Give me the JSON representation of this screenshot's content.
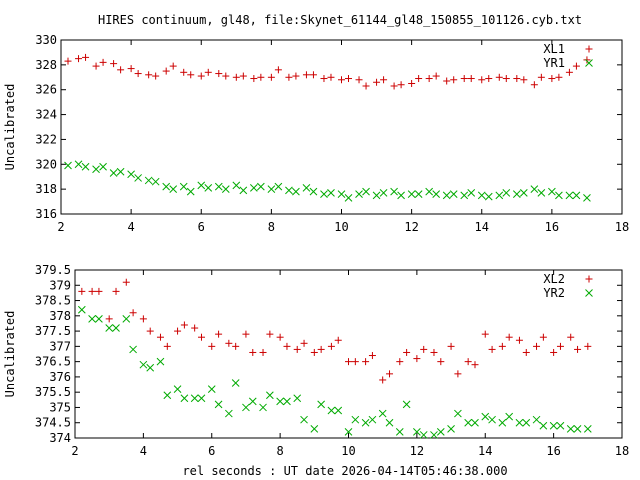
{
  "title": "HIRES continuum, gl48, file:Skynet_61144_gl48_150855_101126.cyb.txt",
  "xlabel": "rel seconds : UT date 2026-04-14T05:46:38.000",
  "colors": {
    "red": "#cc0000",
    "green": "#00aa00"
  },
  "chart_data": [
    {
      "type": "scatter",
      "ylabel": "Uncalibrated",
      "xlim": [
        2,
        18
      ],
      "ylim": [
        316,
        330
      ],
      "xticks": [
        "2",
        "4",
        "6",
        "8",
        "10",
        "12",
        "14",
        "16",
        "18"
      ],
      "yticks": [
        "316",
        "318",
        "320",
        "322",
        "324",
        "326",
        "328",
        "330"
      ],
      "legend_position": "top-right",
      "series": [
        {
          "name": "XL1",
          "marker": "plus",
          "color": "#cc0000",
          "x": [
            2.2,
            2.5,
            2.7,
            3.0,
            3.2,
            3.5,
            3.7,
            4.0,
            4.2,
            4.5,
            4.7,
            5.0,
            5.2,
            5.5,
            5.7,
            6.0,
            6.2,
            6.5,
            6.7,
            7.0,
            7.2,
            7.5,
            7.7,
            8.0,
            8.2,
            8.5,
            8.7,
            9.0,
            9.2,
            9.5,
            9.7,
            10.0,
            10.2,
            10.5,
            10.7,
            11.0,
            11.2,
            11.5,
            11.7,
            12.0,
            12.2,
            12.5,
            12.7,
            13.0,
            13.2,
            13.5,
            13.7,
            14.0,
            14.2,
            14.5,
            14.7,
            15.0,
            15.2,
            15.5,
            15.7,
            16.0,
            16.2,
            16.5,
            16.7,
            17.0
          ],
          "y": [
            328.3,
            328.5,
            328.6,
            327.9,
            328.2,
            328.1,
            327.6,
            327.7,
            327.3,
            327.2,
            327.1,
            327.5,
            327.9,
            327.4,
            327.2,
            327.1,
            327.4,
            327.3,
            327.1,
            327.0,
            327.1,
            326.9,
            327.0,
            327.0,
            327.6,
            327.0,
            327.1,
            327.2,
            327.2,
            326.9,
            327.0,
            326.8,
            326.9,
            326.8,
            326.3,
            326.6,
            326.8,
            326.3,
            326.4,
            326.5,
            326.9,
            326.9,
            327.1,
            326.7,
            326.8,
            326.9,
            326.9,
            326.8,
            326.9,
            327.0,
            326.9,
            326.9,
            326.8,
            326.4,
            327.0,
            326.9,
            327.0,
            327.4,
            327.9,
            328.4
          ]
        },
        {
          "name": "YR1",
          "marker": "cross",
          "color": "#00aa00",
          "x": [
            2.2,
            2.5,
            2.7,
            3.0,
            3.2,
            3.5,
            3.7,
            4.0,
            4.2,
            4.5,
            4.7,
            5.0,
            5.2,
            5.5,
            5.7,
            6.0,
            6.2,
            6.5,
            6.7,
            7.0,
            7.2,
            7.5,
            7.7,
            8.0,
            8.2,
            8.5,
            8.7,
            9.0,
            9.2,
            9.5,
            9.7,
            10.0,
            10.2,
            10.5,
            10.7,
            11.0,
            11.2,
            11.5,
            11.7,
            12.0,
            12.2,
            12.5,
            12.7,
            13.0,
            13.2,
            13.5,
            13.7,
            14.0,
            14.2,
            14.5,
            14.7,
            15.0,
            15.2,
            15.5,
            15.7,
            16.0,
            16.2,
            16.5,
            16.7,
            17.0
          ],
          "y": [
            319.9,
            320.0,
            319.8,
            319.6,
            319.8,
            319.3,
            319.4,
            319.2,
            318.9,
            318.7,
            318.6,
            318.2,
            318.0,
            318.2,
            317.8,
            318.3,
            318.1,
            318.2,
            318.0,
            318.3,
            317.9,
            318.1,
            318.2,
            318.0,
            318.2,
            317.9,
            317.8,
            318.1,
            317.8,
            317.6,
            317.7,
            317.6,
            317.3,
            317.6,
            317.8,
            317.5,
            317.7,
            317.8,
            317.5,
            317.6,
            317.6,
            317.8,
            317.6,
            317.5,
            317.6,
            317.5,
            317.7,
            317.5,
            317.4,
            317.5,
            317.7,
            317.6,
            317.7,
            318.0,
            317.7,
            317.8,
            317.5,
            317.5,
            317.5,
            317.3
          ]
        }
      ]
    },
    {
      "type": "scatter",
      "ylabel": "Uncalibrated",
      "xlim": [
        2,
        18
      ],
      "ylim": [
        374,
        379.5
      ],
      "xticks": [
        "2",
        "4",
        "6",
        "8",
        "10",
        "12",
        "14",
        "16",
        "18"
      ],
      "yticks": [
        "374",
        "374.5",
        "375",
        "375.5",
        "376",
        "376.5",
        "377",
        "377.5",
        "378",
        "378.5",
        "379",
        "379.5"
      ],
      "legend_position": "top-right",
      "series": [
        {
          "name": "XL2",
          "marker": "plus",
          "color": "#cc0000",
          "x": [
            2.2,
            2.5,
            2.7,
            3.0,
            3.2,
            3.5,
            3.7,
            4.0,
            4.2,
            4.5,
            4.7,
            5.0,
            5.2,
            5.5,
            5.7,
            6.0,
            6.2,
            6.5,
            6.7,
            7.0,
            7.2,
            7.5,
            7.7,
            8.0,
            8.2,
            8.5,
            8.7,
            9.0,
            9.2,
            9.5,
            9.7,
            10.0,
            10.2,
            10.5,
            10.7,
            11.0,
            11.2,
            11.5,
            11.7,
            12.0,
            12.2,
            12.5,
            12.7,
            13.0,
            13.2,
            13.5,
            13.7,
            14.0,
            14.2,
            14.5,
            14.7,
            15.0,
            15.2,
            15.5,
            15.7,
            16.0,
            16.2,
            16.5,
            16.7,
            17.0
          ],
          "y": [
            378.8,
            378.8,
            378.8,
            377.9,
            378.8,
            379.1,
            378.1,
            377.9,
            377.5,
            377.3,
            377.0,
            377.5,
            377.7,
            377.6,
            377.3,
            377.0,
            377.4,
            377.1,
            377.0,
            377.4,
            376.8,
            376.8,
            377.4,
            377.3,
            377.0,
            376.9,
            377.1,
            376.8,
            376.9,
            377.0,
            377.2,
            376.5,
            376.5,
            376.5,
            376.7,
            375.9,
            376.1,
            376.5,
            376.8,
            376.6,
            376.9,
            376.8,
            376.5,
            377.0,
            376.1,
            376.5,
            376.4,
            377.4,
            376.9,
            377.0,
            377.3,
            377.2,
            376.8,
            377.0,
            377.3,
            376.8,
            377.0,
            377.3,
            376.9,
            377.0
          ]
        },
        {
          "name": "YR2",
          "marker": "cross",
          "color": "#00aa00",
          "x": [
            2.2,
            2.5,
            2.7,
            3.0,
            3.2,
            3.5,
            3.7,
            4.0,
            4.2,
            4.5,
            4.7,
            5.0,
            5.2,
            5.5,
            5.7,
            6.0,
            6.2,
            6.5,
            6.7,
            7.0,
            7.2,
            7.5,
            7.7,
            8.0,
            8.2,
            8.5,
            8.7,
            9.0,
            9.2,
            9.5,
            9.7,
            10.0,
            10.2,
            10.5,
            10.7,
            11.0,
            11.2,
            11.5,
            11.7,
            12.0,
            12.2,
            12.5,
            12.7,
            13.0,
            13.2,
            13.5,
            13.7,
            14.0,
            14.2,
            14.5,
            14.7,
            15.0,
            15.2,
            15.5,
            15.7,
            16.0,
            16.2,
            16.5,
            16.7,
            17.0
          ],
          "y": [
            378.2,
            377.9,
            377.9,
            377.6,
            377.6,
            377.9,
            376.9,
            376.4,
            376.3,
            376.5,
            375.4,
            375.6,
            375.3,
            375.3,
            375.3,
            375.6,
            375.1,
            374.8,
            375.8,
            375.0,
            375.2,
            375.0,
            375.4,
            375.2,
            375.2,
            375.3,
            374.6,
            374.3,
            375.1,
            374.9,
            374.9,
            374.2,
            374.6,
            374.5,
            374.6,
            374.8,
            374.5,
            374.2,
            375.1,
            374.2,
            374.1,
            374.1,
            374.2,
            374.3,
            374.8,
            374.5,
            374.5,
            374.7,
            374.6,
            374.5,
            374.7,
            374.5,
            374.5,
            374.6,
            374.4,
            374.4,
            374.4,
            374.3,
            374.3,
            374.3
          ]
        }
      ]
    }
  ]
}
